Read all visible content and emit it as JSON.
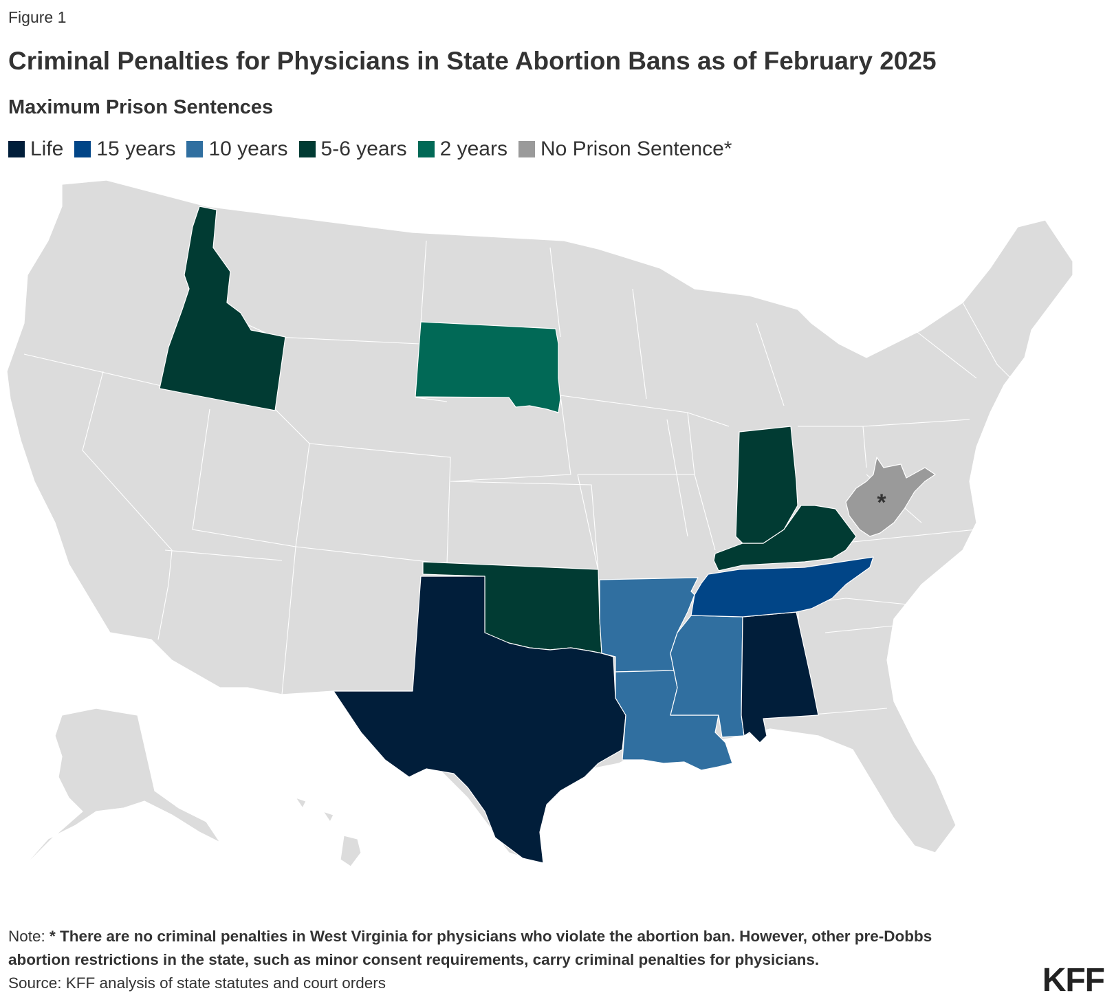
{
  "figure_label": "Figure 1",
  "title": "Criminal Penalties for Physicians in State Abortion Bans as of February 2025",
  "subtitle": "Maximum Prison Sentences",
  "legend": [
    {
      "label": "Life",
      "color": "#011e3a"
    },
    {
      "label": "15 years",
      "color": "#014587"
    },
    {
      "label": "10 years",
      "color": "#306fa0"
    },
    {
      "label": "5-6 years",
      "color": "#013b33"
    },
    {
      "label": "2 years",
      "color": "#016956"
    },
    {
      "label": "No Prison Sentence*",
      "color": "#9a9a9a"
    }
  ],
  "map": {
    "no_data_color": "#dcdcdc",
    "state_categories": {
      "Texas": "Life",
      "Alabama": "Life",
      "Tennessee": "15 years",
      "Arkansas": "10 years",
      "Louisiana": "10 years",
      "Mississippi": "10 years",
      "Idaho": "5-6 years",
      "Oklahoma": "5-6 years",
      "Indiana": "5-6 years",
      "Kentucky": "5-6 years",
      "South Dakota": "2 years",
      "West Virginia": "No Prison Sentence*"
    },
    "wv_marker": "*"
  },
  "note": {
    "prefix": "Note: ",
    "text": "* There are no criminal penalties in West Virginia for physicians who violate the abortion ban. However, other pre-Dobbs abortion restrictions in the state, such as minor consent requirements, carry criminal penalties for physicians."
  },
  "source": "Source: KFF analysis of state statutes and court orders",
  "logo": "KFF"
}
